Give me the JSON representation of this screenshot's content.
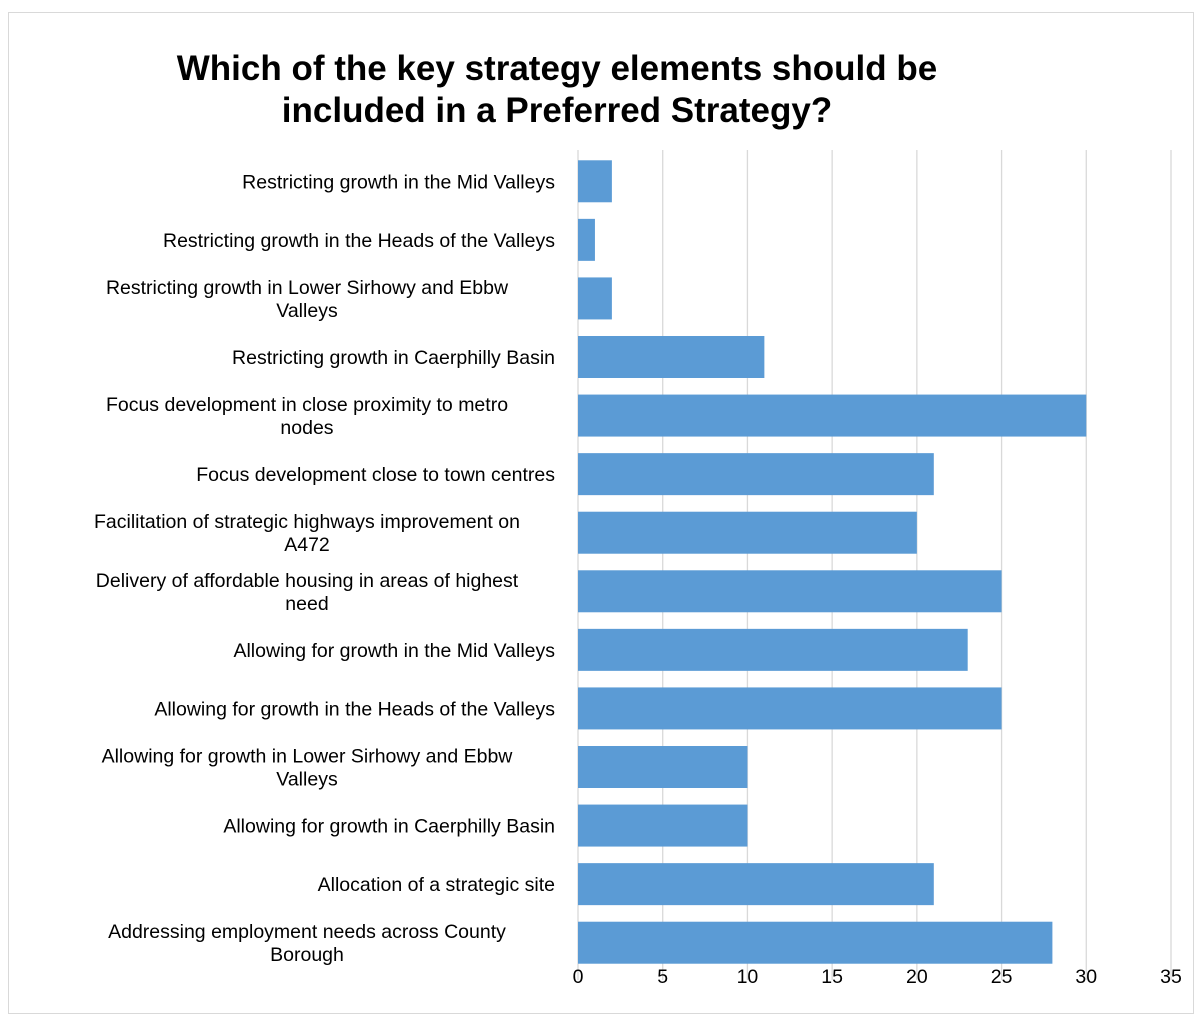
{
  "chart_data": {
    "type": "bar",
    "orientation": "horizontal",
    "title_lines": [
      "Which of the key strategy elements should be",
      "included in a Preferred Strategy?"
    ],
    "categories": [
      [
        "Restricting growth in the Mid Valleys"
      ],
      [
        "Restricting growth in the Heads of the Valleys"
      ],
      [
        "Restricting growth in Lower Sirhowy and Ebbw",
        "Valleys"
      ],
      [
        "Restricting growth in Caerphilly Basin"
      ],
      [
        "Focus development in close proximity to metro",
        "nodes"
      ],
      [
        "Focus development close to town centres"
      ],
      [
        "Facilitation of strategic highways improvement on",
        "A472"
      ],
      [
        "Delivery of affordable housing in areas of highest",
        "need"
      ],
      [
        "Allowing for growth in the Mid Valleys"
      ],
      [
        "Allowing for growth in the Heads of the Valleys"
      ],
      [
        "Allowing for growth in Lower Sirhowy and Ebbw",
        "Valleys"
      ],
      [
        "Allowing for growth in Caerphilly Basin"
      ],
      [
        "Allocation of a strategic site"
      ],
      [
        "Addressing employment needs across County",
        "Borough"
      ]
    ],
    "values": [
      2,
      1,
      2,
      11,
      30,
      21,
      20,
      25,
      23,
      25,
      10,
      10,
      21,
      28
    ],
    "xlim": [
      0,
      35
    ],
    "xticks": [
      "0",
      "5",
      "10",
      "15",
      "20",
      "25",
      "30",
      "35"
    ],
    "grid": true,
    "bar_color": "#5b9bd5",
    "grid_color": "#d9d9d9"
  }
}
